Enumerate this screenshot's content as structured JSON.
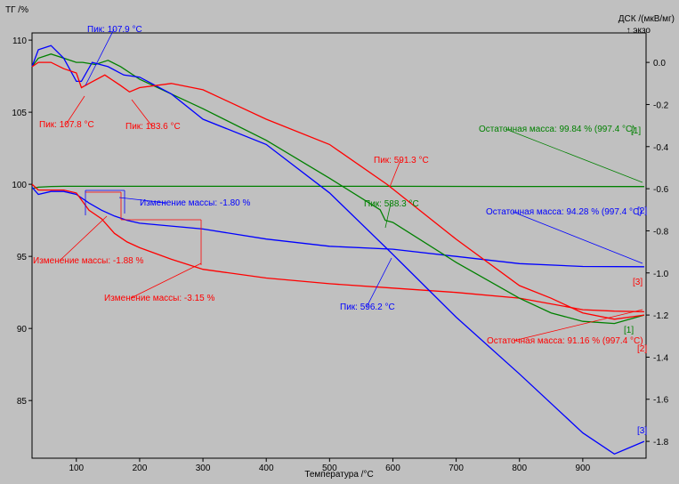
{
  "chart_data": {
    "type": "line",
    "ylabel_left": "ТГ /%",
    "ylabel_right": "ДСК /(мкВ/мг)",
    "exo_label": "↑ экзо",
    "xlabel": "Температура /°C",
    "xlim": [
      30,
      1000
    ],
    "ylim_left": [
      81,
      110.5
    ],
    "ylim_right": [
      -1.88,
      0.14
    ],
    "x_ticks": [
      100,
      200,
      300,
      400,
      500,
      600,
      700,
      800,
      900
    ],
    "y_ticks_left": [
      85,
      90,
      95,
      100,
      105,
      110
    ],
    "y_ticks_right": [
      0.0,
      -0.2,
      -0.4,
      -0.6,
      -0.8,
      -1.0,
      -1.2,
      -1.4,
      -1.6,
      -1.8
    ],
    "y_tick_labels_right": [
      "0.0",
      "-0.2",
      "-0.4",
      "-0.6",
      "-0.8",
      "-1.0",
      "-1.2",
      "-1.4",
      "-1.6",
      "-1.8"
    ],
    "colors": {
      "red": "#ff0000",
      "blue": "#0000ff",
      "green": "#008000"
    },
    "series": [
      {
        "axis": "left",
        "color": "#008000",
        "x": [
          30,
          40,
          60,
          80,
          100,
          200,
          400,
          600,
          800,
          997
        ],
        "y": [
          99.7,
          99.8,
          99.85,
          99.86,
          99.86,
          99.86,
          99.86,
          99.86,
          99.85,
          99.84
        ]
      },
      {
        "axis": "left",
        "color": "#0000ff",
        "x": [
          30,
          40,
          60,
          80,
          100,
          120,
          140,
          160,
          180,
          200,
          250,
          300,
          400,
          500,
          600,
          700,
          800,
          900,
          997
        ],
        "y": [
          99.8,
          99.3,
          99.5,
          99.5,
          99.3,
          98.7,
          98.2,
          97.8,
          97.5,
          97.3,
          97.1,
          96.9,
          96.2,
          95.7,
          95.5,
          95.0,
          94.5,
          94.3,
          94.28
        ]
      },
      {
        "axis": "left",
        "color": "#ff0000",
        "x": [
          30,
          40,
          60,
          80,
          100,
          120,
          140,
          160,
          180,
          200,
          250,
          300,
          400,
          500,
          600,
          700,
          800,
          900,
          950,
          997
        ],
        "y": [
          100.0,
          99.6,
          99.6,
          99.6,
          99.4,
          98.2,
          97.6,
          96.6,
          96.0,
          95.6,
          94.8,
          94.1,
          93.5,
          93.1,
          92.8,
          92.5,
          92.1,
          91.3,
          91.2,
          91.16
        ]
      },
      {
        "axis": "right",
        "color": "#008000",
        "x": [
          30,
          40,
          60,
          80,
          100,
          110,
          130,
          150,
          170,
          200,
          300,
          400,
          500,
          580,
          588,
          600,
          700,
          800,
          850,
          900,
          950,
          997
        ],
        "y": [
          -0.02,
          0.02,
          0.04,
          0.02,
          0.0,
          0.0,
          -0.01,
          0.01,
          -0.02,
          -0.08,
          -0.22,
          -0.37,
          -0.55,
          -0.7,
          -0.75,
          -0.76,
          -0.95,
          -1.12,
          -1.19,
          -1.23,
          -1.24,
          -1.2
        ]
      },
      {
        "axis": "right",
        "color": "#0000ff",
        "x": [
          30,
          40,
          60,
          80,
          100,
          108,
          125,
          150,
          175,
          200,
          250,
          300,
          400,
          500,
          596,
          700,
          800,
          900,
          950,
          997
        ],
        "y": [
          -0.02,
          0.06,
          0.08,
          0.02,
          -0.09,
          -0.09,
          0.0,
          -0.02,
          -0.06,
          -0.07,
          -0.15,
          -0.27,
          -0.39,
          -0.62,
          -0.9,
          -1.21,
          -1.48,
          -1.76,
          -1.86,
          -1.8
        ]
      },
      {
        "axis": "right",
        "color": "#ff0000",
        "x": [
          30,
          40,
          60,
          80,
          100,
          108,
          120,
          145,
          170,
          184,
          200,
          250,
          300,
          400,
          500,
          591,
          700,
          800,
          850,
          900,
          950,
          997
        ],
        "y": [
          -0.02,
          0.0,
          0.0,
          -0.03,
          -0.05,
          -0.12,
          -0.1,
          -0.06,
          -0.11,
          -0.14,
          -0.12,
          -0.1,
          -0.13,
          -0.27,
          -0.39,
          -0.58,
          -0.84,
          -1.06,
          -1.12,
          -1.19,
          -1.22,
          -1.2
        ]
      }
    ],
    "annotations": [
      {
        "text": "Пик: 107.9 °C",
        "color": "#0000ff"
      },
      {
        "text": "Пик: 107.8 °C",
        "color": "#ff0000"
      },
      {
        "text": "Пик: 183.6 °C",
        "color": "#ff0000"
      },
      {
        "text": "Пик: 591.3 °C",
        "color": "#ff0000"
      },
      {
        "text": "Пик: 588.3 °C",
        "color": "#008000"
      },
      {
        "text": "Пик: 596.2 °C",
        "color": "#0000ff"
      },
      {
        "text": "Остаточная масса: 99.84 % (997.4 °C)",
        "color": "#008000"
      },
      {
        "text": "Остаточная масса: 94.28 % (997.4 °C)",
        "color": "#0000ff"
      },
      {
        "text": "Остаточная масса: 91.16 % (997.4 °C)",
        "color": "#ff0000"
      },
      {
        "text": "Изменение массы: -1.80 %",
        "color": "#0000ff"
      },
      {
        "text": "Изменение массы: -1.88 %",
        "color": "#ff0000"
      },
      {
        "text": "Изменение массы: -3.15 %",
        "color": "#ff0000"
      }
    ],
    "curve_tags": [
      {
        "text": "[1]",
        "color": "#008000"
      },
      {
        "text": "[2]",
        "color": "#0000ff"
      },
      {
        "text": "[3]",
        "color": "#ff0000"
      },
      {
        "text": "[1]",
        "color": "#008000"
      },
      {
        "text": "[2]",
        "color": "#ff0000"
      },
      {
        "text": "[3]",
        "color": "#0000ff"
      }
    ]
  }
}
